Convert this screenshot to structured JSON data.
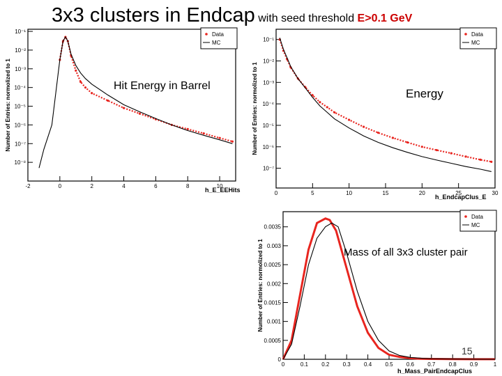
{
  "slide": {
    "title_main": "3x3 clusters in Endcap",
    "title_sub": "with seed threshold",
    "title_cut": "E>0.1 GeV",
    "page_number": "15"
  },
  "colors": {
    "data": "#e8251f",
    "mc": "#000000",
    "frame": "#000000",
    "background": "#ffffff"
  },
  "chart_data": [
    {
      "type": "line",
      "xlabel": "h_E_EEHits",
      "ylabel": "Number of Entries: normolized to 1",
      "annotation": "Hit Energy in Barrel",
      "log_y": true,
      "xlim": [
        -2,
        11
      ],
      "ylim": [
        1e-09,
        0.13
      ],
      "xticks": [
        -2,
        0,
        2,
        4,
        6,
        8,
        10
      ],
      "xtick_labels": [
        "-2",
        "0",
        "2",
        "4",
        "6",
        "8",
        "10"
      ],
      "yticks": [
        1e-08,
        1e-07,
        1e-06,
        1e-05,
        0.0001,
        0.001,
        0.01,
        0.1
      ],
      "ytick_labels": [
        "10⁻⁸",
        "10⁻⁷",
        "10⁻⁶",
        "10⁻⁵",
        "10⁻⁴",
        "10⁻³",
        "10⁻²",
        "10⁻¹"
      ],
      "legend": {
        "position": "top-right",
        "entries": [
          "Data",
          "MC"
        ]
      },
      "series": [
        {
          "name": "Data",
          "style": "points",
          "x": [
            0.0,
            0.2,
            0.35,
            0.5,
            0.7,
            1.0,
            1.3,
            1.6,
            2,
            3,
            4,
            5,
            6,
            7,
            8,
            9,
            10,
            10.8
          ],
          "y": [
            0.003,
            0.03,
            0.05,
            0.03,
            0.005,
            0.0008,
            0.0002,
            0.0001,
            5e-05,
            2e-05,
            8e-06,
            4e-06,
            2e-06,
            1e-06,
            6e-07,
            3.5e-07,
            2e-07,
            1.3e-07
          ]
        },
        {
          "name": "MC",
          "style": "line",
          "x": [
            -1.3,
            -1.0,
            -0.5,
            0.0,
            0.2,
            0.35,
            0.5,
            0.7,
            1.0,
            1.3,
            1.6,
            2,
            3,
            4,
            5,
            6,
            7,
            8,
            9,
            10,
            10.8
          ],
          "y": [
            5e-09,
            5e-08,
            1e-06,
            0.003,
            0.03,
            0.05,
            0.03,
            0.006,
            0.0015,
            0.0006,
            0.0003,
            0.00015,
            4e-05,
            1.2e-05,
            5e-06,
            2.2e-06,
            1e-06,
            5e-07,
            2.8e-07,
            1.6e-07,
            1e-07
          ]
        }
      ]
    },
    {
      "type": "line",
      "xlabel": "h_EndcapClus_E",
      "ylabel": "Number of Entries: normolized to 1",
      "annotation": "Energy",
      "log_y": true,
      "xlim": [
        0,
        30
      ],
      "ylim": [
        1.2e-08,
        0.3
      ],
      "xticks": [
        0,
        5,
        10,
        15,
        20,
        25,
        30
      ],
      "xtick_labels": [
        "0",
        "5",
        "10",
        "15",
        "20",
        "25",
        "30"
      ],
      "yticks": [
        1e-07,
        1e-06,
        1e-05,
        0.0001,
        0.001,
        0.01,
        0.1
      ],
      "ytick_labels": [
        "10⁻⁷",
        "10⁻⁶",
        "10⁻⁵",
        "10⁻⁴",
        "10⁻³",
        "10⁻²",
        "10⁻¹"
      ],
      "legend": {
        "position": "top-right",
        "entries": [
          "Data",
          "MC"
        ]
      },
      "series": [
        {
          "name": "Data",
          "style": "points",
          "x": [
            0.5,
            1,
            1.5,
            2,
            3,
            4,
            5,
            6,
            7,
            8,
            10,
            12,
            14,
            16,
            18,
            20,
            22,
            24,
            26,
            28,
            29.5
          ],
          "y": [
            0.1,
            0.03,
            0.012,
            0.005,
            0.0015,
            0.0006,
            0.00025,
            0.00012,
            7e-05,
            4e-05,
            1.8e-05,
            8.5e-06,
            4.5e-06,
            2.6e-06,
            1.6e-06,
            1e-06,
            7e-07,
            5e-07,
            3.5e-07,
            2.5e-07,
            2e-07
          ]
        },
        {
          "name": "MC",
          "style": "line",
          "x": [
            0.5,
            1,
            1.5,
            2,
            3,
            4,
            5,
            6,
            7,
            8,
            10,
            12,
            14,
            16,
            18,
            20,
            22,
            24,
            26,
            28,
            29.5
          ],
          "y": [
            0.12,
            0.035,
            0.014,
            0.0055,
            0.0015,
            0.00055,
            0.0002,
            8e-05,
            4e-05,
            2e-05,
            7.5e-06,
            3.2e-06,
            1.6e-06,
            9e-07,
            5.5e-07,
            3.5e-07,
            2.4e-07,
            1.7e-07,
            1.2e-07,
            9e-08,
            7e-08
          ]
        }
      ]
    },
    {
      "type": "line",
      "xlabel": "h_Mass_PairEndcapClus",
      "ylabel": "Number of Entries: normolized to 1",
      "annotation": "Mass of all 3x3 cluster pair",
      "log_y": false,
      "xlim": [
        0,
        1
      ],
      "ylim": [
        0,
        0.0039
      ],
      "xticks": [
        0,
        0.1,
        0.2,
        0.3,
        0.4,
        0.5,
        0.6,
        0.7,
        0.8,
        0.9,
        1
      ],
      "xtick_labels": [
        "0",
        "0.1",
        "0.2",
        "0.3",
        "0.4",
        "0.5",
        "0.6",
        "0.7",
        "0.8",
        "0.9",
        "1"
      ],
      "yticks": [
        0,
        0.0005,
        0.001,
        0.0015,
        0.002,
        0.0025,
        0.003,
        0.0035
      ],
      "ytick_labels": [
        "0",
        "0.0005",
        "0.001",
        "0.0015",
        "0.002",
        "0.0025",
        "0.003",
        "0.0035"
      ],
      "legend": {
        "position": "top-right",
        "entries": [
          "Data",
          "MC"
        ]
      },
      "series": [
        {
          "name": "Data",
          "style": "line",
          "x": [
            0,
            0.04,
            0.08,
            0.12,
            0.16,
            0.2,
            0.22,
            0.25,
            0.3,
            0.35,
            0.4,
            0.45,
            0.5,
            0.55,
            0.6,
            0.65,
            0.7,
            0.8,
            0.9,
            1.0
          ],
          "y": [
            0,
            0.0005,
            0.0017,
            0.0029,
            0.0036,
            0.00372,
            0.00368,
            0.0034,
            0.0024,
            0.0014,
            0.0007,
            0.0003,
            0.00012,
            6e-05,
            3e-05,
            1.5e-05,
            1e-05,
            5e-06,
            2e-06,
            1e-06
          ]
        },
        {
          "name": "MC",
          "style": "line",
          "x": [
            0,
            0.04,
            0.08,
            0.12,
            0.16,
            0.2,
            0.23,
            0.26,
            0.3,
            0.35,
            0.4,
            0.45,
            0.5,
            0.55,
            0.6,
            0.65,
            0.7,
            0.8,
            0.9,
            1.0
          ],
          "y": [
            0,
            0.0004,
            0.0014,
            0.0025,
            0.0032,
            0.0035,
            0.0036,
            0.0035,
            0.0028,
            0.0018,
            0.001,
            0.0005,
            0.00022,
            0.0001,
            5e-05,
            3e-05,
            1.5e-05,
            7e-06,
            3e-06,
            1e-06
          ]
        }
      ]
    }
  ]
}
